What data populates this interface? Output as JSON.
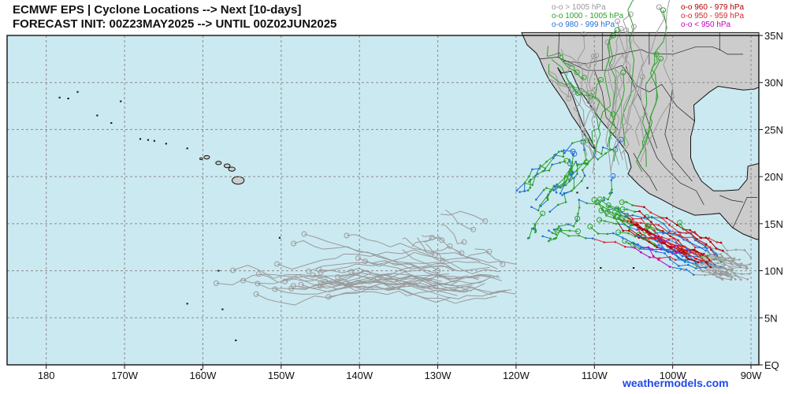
{
  "header": {
    "title_line1": "ECMWF EPS | Cyclone Locations --> Next [10-days]",
    "title_line2": "FORECAST INIT: 00Z23MAY2025 --> UNTIL 00Z02JUN2025"
  },
  "legend": [
    {
      "label": "o-o > 1005 hPa",
      "color": "#9a9a9a"
    },
    {
      "label": "o-o 1000 - 1005 hPa",
      "color": "#2ca02c"
    },
    {
      "label": "o-o 980 - 999 hPa",
      "color": "#1f6fd6"
    },
    {
      "label": "o-o 960 - 979 hPa",
      "color": "#b00000"
    },
    {
      "label": "o-o 950 - 959 hPa",
      "color": "#d62728"
    },
    {
      "label": "o-o < 950 hPa",
      "color": "#c000c0"
    }
  ],
  "axes": {
    "lon_labels": [
      "180",
      "170W",
      "160W",
      "150W",
      "140W",
      "130W",
      "120W",
      "110W",
      "100W",
      "90W"
    ],
    "lat_labels": [
      "35N",
      "30N",
      "25N",
      "20N",
      "15N",
      "10N",
      "5N",
      "EQ"
    ],
    "lon_range": [
      -185,
      -89
    ],
    "lat_range": [
      0,
      35
    ]
  },
  "colors": {
    "ocean": "#cbe9f1",
    "land": "#cccccc",
    "grid": "#8a8a8a"
  },
  "credit": "weathermodels.com"
}
